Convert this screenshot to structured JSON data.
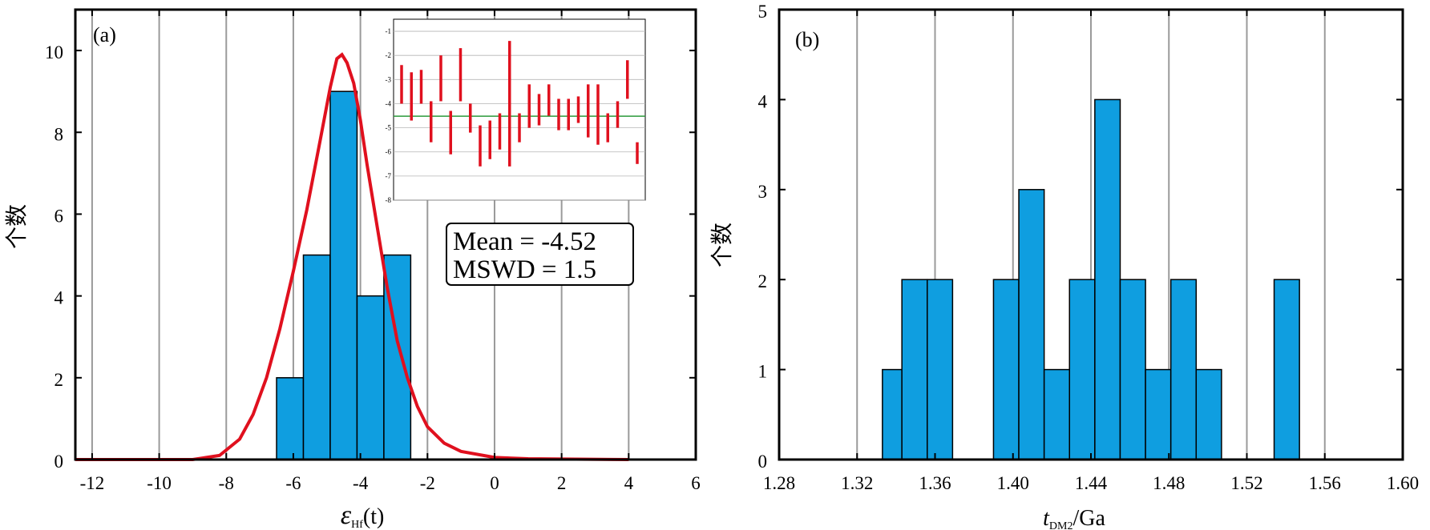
{
  "chart_data": [
    {
      "id": "a",
      "type": "bar",
      "panel_label": "(a)",
      "xlabel_main": "ε",
      "xlabel_sub": "Hf",
      "xlabel_suffix": "(t)",
      "ylabel": "个数",
      "xlim": [
        -12.5,
        6
      ],
      "ylim": [
        0,
        11
      ],
      "x_ticks": [
        "-12",
        "-10",
        "-8",
        "-6",
        "-4",
        "-2",
        "0",
        "2",
        "4",
        "6"
      ],
      "x_tick_values": [
        -12,
        -10,
        -8,
        -6,
        -4,
        -2,
        0,
        2,
        4,
        6
      ],
      "y_ticks": [
        "0",
        "2",
        "4",
        "6",
        "8",
        "10"
      ],
      "y_tick_values": [
        0,
        2,
        4,
        6,
        8,
        10
      ],
      "grid": "vertical",
      "bar_color": "#0f9ee0",
      "bars": [
        {
          "x0": -6.5,
          "x1": -5.7,
          "value": 2
        },
        {
          "x0": -5.7,
          "x1": -4.9,
          "value": 5
        },
        {
          "x0": -4.9,
          "x1": -4.1,
          "value": 9
        },
        {
          "x0": -4.1,
          "x1": -3.3,
          "value": 4
        },
        {
          "x0": -3.3,
          "x1": -2.5,
          "value": 5
        }
      ],
      "curve": {
        "color": "#e0101e",
        "type": "probability-density",
        "x_range": [
          -12.5,
          4
        ],
        "points": [
          [
            -12.5,
            0
          ],
          [
            -9,
            0
          ],
          [
            -8.2,
            0.1
          ],
          [
            -7.6,
            0.5
          ],
          [
            -7.2,
            1.1
          ],
          [
            -6.8,
            2.0
          ],
          [
            -6.4,
            3.2
          ],
          [
            -6.0,
            4.6
          ],
          [
            -5.6,
            6.1
          ],
          [
            -5.2,
            7.8
          ],
          [
            -4.9,
            9.1
          ],
          [
            -4.7,
            9.8
          ],
          [
            -4.55,
            9.9
          ],
          [
            -4.4,
            9.7
          ],
          [
            -4.2,
            9.2
          ],
          [
            -4.0,
            8.3
          ],
          [
            -3.8,
            7.2
          ],
          [
            -3.5,
            5.7
          ],
          [
            -3.2,
            4.2
          ],
          [
            -2.9,
            2.9
          ],
          [
            -2.6,
            2.0
          ],
          [
            -2.3,
            1.3
          ],
          [
            -2.0,
            0.8
          ],
          [
            -1.5,
            0.4
          ],
          [
            -1.0,
            0.2
          ],
          [
            0,
            0.05
          ],
          [
            1,
            0.02
          ],
          [
            4,
            0
          ]
        ]
      },
      "inset": {
        "type": "error-bar",
        "ylim": [
          -8,
          -0.5
        ],
        "y_ticks": [
          "-1",
          "-2",
          "-3",
          "-4",
          "-5",
          "-6",
          "-7",
          "-8"
        ],
        "y_tick_values": [
          -1,
          -2,
          -3,
          -4,
          -5,
          -6,
          -7,
          -8
        ],
        "mean_line": -4.52,
        "mean_color": "#2a9a3a",
        "bar_color": "#e0101e",
        "error_bars": [
          [
            -2.4,
            -4.0
          ],
          [
            -2.7,
            -4.7
          ],
          [
            -2.6,
            -4.0
          ],
          [
            -3.9,
            -5.6
          ],
          [
            -2.0,
            -3.9
          ],
          [
            -4.3,
            -6.1
          ],
          [
            -1.7,
            -3.9
          ],
          [
            -4.0,
            -5.2
          ],
          [
            -4.9,
            -6.6
          ],
          [
            -4.7,
            -6.3
          ],
          [
            -4.4,
            -5.9
          ],
          [
            -1.4,
            -6.6
          ],
          [
            -4.4,
            -5.6
          ],
          [
            -3.2,
            -5.0
          ],
          [
            -3.6,
            -4.9
          ],
          [
            -3.2,
            -4.5
          ],
          [
            -3.8,
            -5.1
          ],
          [
            -3.8,
            -5.1
          ],
          [
            -3.7,
            -4.8
          ],
          [
            -3.2,
            -5.4
          ],
          [
            -3.2,
            -5.7
          ],
          [
            -4.4,
            -5.6
          ],
          [
            -3.9,
            -5.0
          ],
          [
            -2.2,
            -3.8
          ],
          [
            -5.6,
            -6.5
          ]
        ]
      },
      "stats": {
        "line1": "Mean = -4.52",
        "line2": "MSWD = 1.5"
      }
    },
    {
      "id": "b",
      "type": "bar",
      "panel_label": "(b)",
      "xlabel_main": "t",
      "xlabel_sub": "DM2",
      "xlabel_suffix": "/Ga",
      "ylabel": "个数",
      "xlim": [
        1.28,
        1.6
      ],
      "ylim": [
        0,
        5
      ],
      "x_ticks": [
        "1.28",
        "1.32",
        "1.36",
        "1.40",
        "1.44",
        "1.48",
        "1.52",
        "1.56",
        "1.60"
      ],
      "x_tick_values": [
        1.28,
        1.32,
        1.36,
        1.4,
        1.44,
        1.48,
        1.52,
        1.56,
        1.6
      ],
      "y_ticks": [
        "0",
        "1",
        "2",
        "3",
        "4",
        "5"
      ],
      "y_tick_values": [
        0,
        1,
        2,
        3,
        4,
        5
      ],
      "grid": "vertical",
      "bar_color": "#0f9ee0",
      "bars": [
        {
          "x0": 1.333,
          "x1": 1.343,
          "value": 1
        },
        {
          "x0": 1.343,
          "x1": 1.356,
          "value": 2
        },
        {
          "x0": 1.356,
          "x1": 1.369,
          "value": 2
        },
        {
          "x0": 1.39,
          "x1": 1.403,
          "value": 2
        },
        {
          "x0": 1.403,
          "x1": 1.416,
          "value": 3
        },
        {
          "x0": 1.416,
          "x1": 1.429,
          "value": 1
        },
        {
          "x0": 1.429,
          "x1": 1.442,
          "value": 2
        },
        {
          "x0": 1.442,
          "x1": 1.455,
          "value": 4
        },
        {
          "x0": 1.455,
          "x1": 1.468,
          "value": 2
        },
        {
          "x0": 1.468,
          "x1": 1.481,
          "value": 1
        },
        {
          "x0": 1.481,
          "x1": 1.494,
          "value": 2
        },
        {
          "x0": 1.494,
          "x1": 1.507,
          "value": 1
        },
        {
          "x0": 1.534,
          "x1": 1.547,
          "value": 2
        }
      ]
    }
  ]
}
